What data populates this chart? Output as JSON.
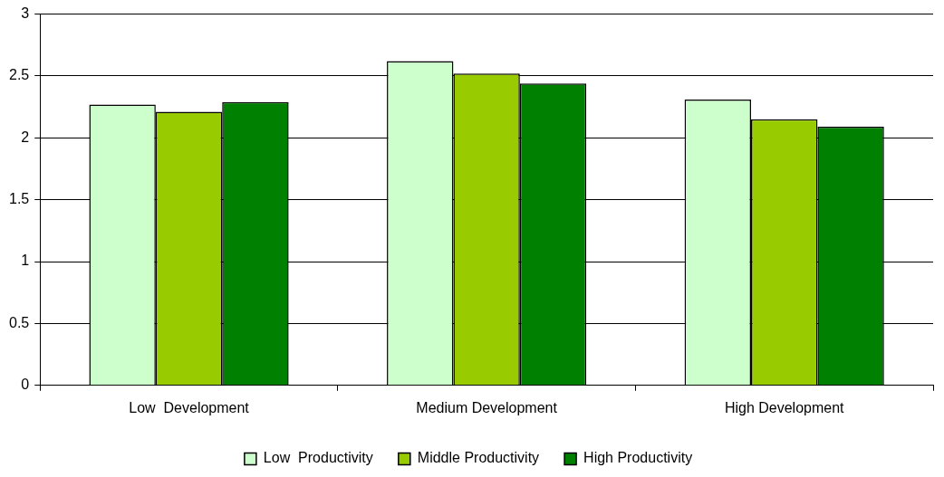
{
  "chart_data": {
    "type": "bar",
    "categories": [
      "Low  Development",
      "Medium Development",
      "High Development"
    ],
    "series": [
      {
        "name": "Low  Productivity",
        "color": "#ccffcc",
        "values": [
          2.27,
          2.62,
          2.31
        ]
      },
      {
        "name": "Middle Productivity",
        "color": "#99cc00",
        "values": [
          2.21,
          2.52,
          2.15
        ]
      },
      {
        "name": "High Productivity",
        "color": "#008000",
        "values": [
          2.29,
          2.44,
          2.09
        ]
      }
    ],
    "ylim": [
      0,
      3
    ],
    "yticks": [
      0,
      0.5,
      1,
      1.5,
      2,
      2.5,
      3
    ],
    "grid": "y",
    "legend": "bottom"
  }
}
